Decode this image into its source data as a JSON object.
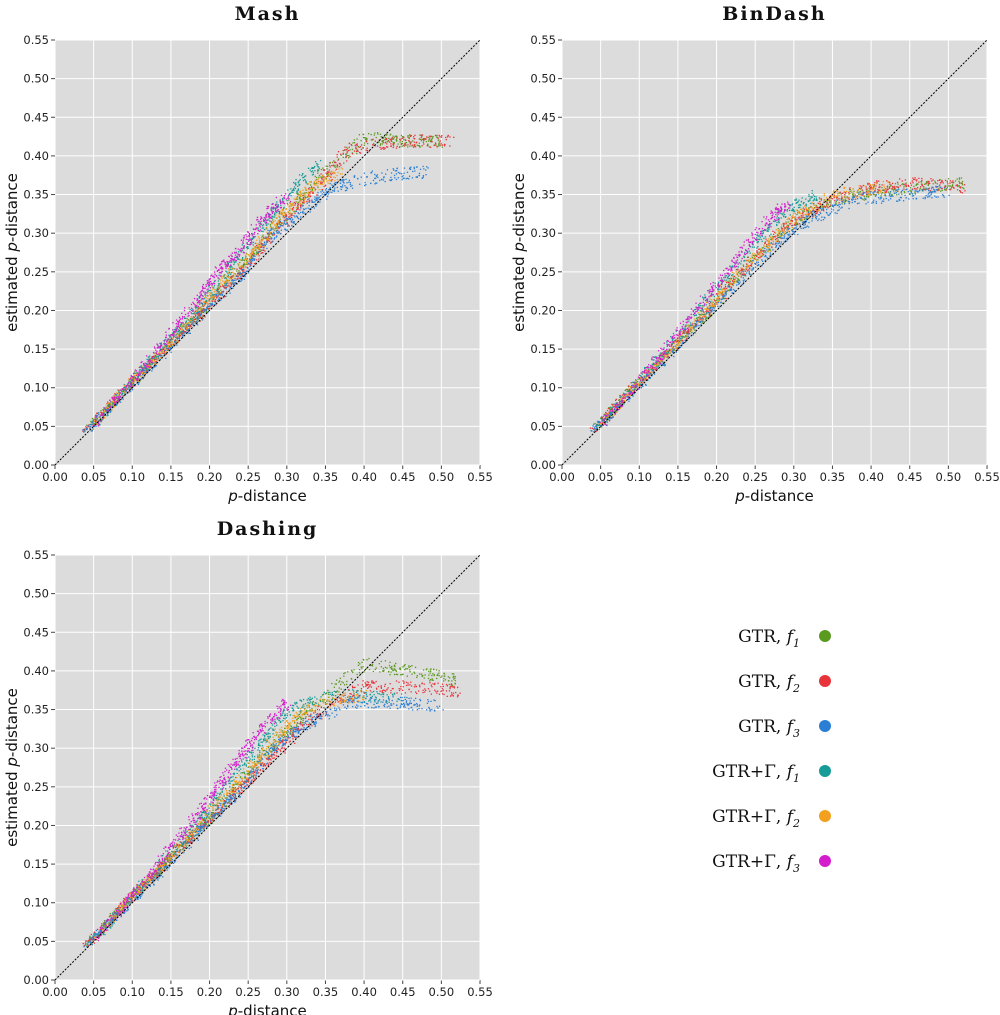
{
  "chart_data": [
    {
      "type": "scatter",
      "title": "Mash",
      "xlabel_var": "p",
      "xlabel_rest": "-distance",
      "ylabel_prefix": "estimated ",
      "ylabel_var": "p",
      "ylabel_rest": "-distance",
      "xlim": [
        0,
        0.55
      ],
      "ylim": [
        0,
        0.55
      ],
      "x_ticks": [
        "0.00",
        "0.05",
        "0.10",
        "0.15",
        "0.20",
        "0.25",
        "0.30",
        "0.35",
        "0.40",
        "0.45",
        "0.50",
        "0.55"
      ],
      "y_ticks": [
        "0.00",
        "0.05",
        "0.10",
        "0.15",
        "0.20",
        "0.25",
        "0.30",
        "0.35",
        "0.40",
        "0.45",
        "0.50",
        "0.55"
      ],
      "grid": true,
      "reference_line": "y = x",
      "series": [
        {
          "name": "GTR, f1",
          "points": [
            [
              0.04,
              0.046
            ],
            [
              0.08,
              0.087
            ],
            [
              0.13,
              0.14
            ],
            [
              0.18,
              0.19
            ],
            [
              0.22,
              0.235
            ],
            [
              0.26,
              0.28
            ],
            [
              0.3,
              0.33
            ],
            [
              0.34,
              0.37
            ],
            [
              0.4,
              0.425
            ],
            [
              0.45,
              0.42
            ],
            [
              0.5,
              0.42
            ]
          ]
        },
        {
          "name": "GTR, f2",
          "points": [
            [
              0.04,
              0.045
            ],
            [
              0.09,
              0.1
            ],
            [
              0.13,
              0.14
            ],
            [
              0.17,
              0.18
            ],
            [
              0.21,
              0.22
            ],
            [
              0.25,
              0.26
            ],
            [
              0.29,
              0.31
            ],
            [
              0.33,
              0.35
            ],
            [
              0.38,
              0.41
            ],
            [
              0.45,
              0.42
            ],
            [
              0.51,
              0.42
            ]
          ]
        },
        {
          "name": "GTR, f3",
          "points": [
            [
              0.04,
              0.045
            ],
            [
              0.08,
              0.085
            ],
            [
              0.12,
              0.125
            ],
            [
              0.16,
              0.165
            ],
            [
              0.2,
              0.21
            ],
            [
              0.24,
              0.245
            ],
            [
              0.28,
              0.3
            ],
            [
              0.32,
              0.33
            ],
            [
              0.36,
              0.36
            ],
            [
              0.42,
              0.375
            ],
            [
              0.48,
              0.38
            ]
          ]
        },
        {
          "name": "GTR+Γ, f1",
          "points": [
            [
              0.05,
              0.052
            ],
            [
              0.1,
              0.11
            ],
            [
              0.14,
              0.155
            ],
            [
              0.18,
              0.2
            ],
            [
              0.22,
              0.25
            ],
            [
              0.26,
              0.3
            ],
            [
              0.3,
              0.35
            ],
            [
              0.34,
              0.39
            ]
          ]
        },
        {
          "name": "GTR+Γ, f2",
          "points": [
            [
              0.05,
              0.052
            ],
            [
              0.1,
              0.11
            ],
            [
              0.15,
              0.16
            ],
            [
              0.2,
              0.22
            ],
            [
              0.25,
              0.27
            ],
            [
              0.29,
              0.32
            ],
            [
              0.33,
              0.36
            ],
            [
              0.37,
              0.38
            ]
          ]
        },
        {
          "name": "GTR+Γ, f3",
          "points": [
            [
              0.05,
              0.053
            ],
            [
              0.1,
              0.11
            ],
            [
              0.14,
              0.16
            ],
            [
              0.18,
              0.21
            ],
            [
              0.21,
              0.25
            ],
            [
              0.24,
              0.28
            ],
            [
              0.27,
              0.32
            ],
            [
              0.3,
              0.35
            ]
          ]
        }
      ]
    },
    {
      "type": "scatter",
      "title": "BinDash",
      "xlabel_var": "p",
      "xlabel_rest": "-distance",
      "ylabel_prefix": "estimated ",
      "ylabel_var": "p",
      "ylabel_rest": "-distance",
      "xlim": [
        0,
        0.55
      ],
      "ylim": [
        0,
        0.55
      ],
      "x_ticks": [
        "0.00",
        "0.05",
        "0.10",
        "0.15",
        "0.20",
        "0.25",
        "0.30",
        "0.35",
        "0.40",
        "0.45",
        "0.50",
        "0.55"
      ],
      "y_ticks": [
        "0.00",
        "0.05",
        "0.10",
        "0.15",
        "0.20",
        "0.25",
        "0.30",
        "0.35",
        "0.40",
        "0.45",
        "0.50",
        "0.55"
      ],
      "grid": true,
      "reference_line": "y = x",
      "series": [
        {
          "name": "GTR, f1",
          "points": [
            [
              0.04,
              0.046
            ],
            [
              0.09,
              0.1
            ],
            [
              0.14,
              0.15
            ],
            [
              0.19,
              0.2
            ],
            [
              0.24,
              0.26
            ],
            [
              0.29,
              0.31
            ],
            [
              0.34,
              0.34
            ],
            [
              0.4,
              0.355
            ],
            [
              0.46,
              0.36
            ],
            [
              0.52,
              0.365
            ]
          ]
        },
        {
          "name": "GTR, f2",
          "points": [
            [
              0.04,
              0.045
            ],
            [
              0.09,
              0.1
            ],
            [
              0.14,
              0.15
            ],
            [
              0.19,
              0.2
            ],
            [
              0.24,
              0.26
            ],
            [
              0.29,
              0.31
            ],
            [
              0.34,
              0.34
            ],
            [
              0.4,
              0.36
            ],
            [
              0.46,
              0.365
            ],
            [
              0.52,
              0.36
            ]
          ]
        },
        {
          "name": "GTR, f3",
          "points": [
            [
              0.04,
              0.045
            ],
            [
              0.08,
              0.085
            ],
            [
              0.13,
              0.135
            ],
            [
              0.18,
              0.19
            ],
            [
              0.23,
              0.24
            ],
            [
              0.28,
              0.29
            ],
            [
              0.32,
              0.32
            ],
            [
              0.38,
              0.345
            ],
            [
              0.44,
              0.35
            ],
            [
              0.5,
              0.355
            ]
          ]
        },
        {
          "name": "GTR+Γ, f1",
          "points": [
            [
              0.05,
              0.052
            ],
            [
              0.1,
              0.11
            ],
            [
              0.15,
              0.17
            ],
            [
              0.2,
              0.23
            ],
            [
              0.25,
              0.29
            ],
            [
              0.29,
              0.33
            ],
            [
              0.33,
              0.35
            ]
          ]
        },
        {
          "name": "GTR+Γ, f2",
          "points": [
            [
              0.05,
              0.052
            ],
            [
              0.1,
              0.11
            ],
            [
              0.15,
              0.16
            ],
            [
              0.2,
              0.22
            ],
            [
              0.25,
              0.27
            ],
            [
              0.3,
              0.32
            ],
            [
              0.35,
              0.35
            ],
            [
              0.42,
              0.36
            ]
          ]
        },
        {
          "name": "GTR+Γ, f3",
          "points": [
            [
              0.05,
              0.053
            ],
            [
              0.1,
              0.11
            ],
            [
              0.14,
              0.16
            ],
            [
              0.18,
              0.21
            ],
            [
              0.22,
              0.26
            ],
            [
              0.26,
              0.31
            ],
            [
              0.29,
              0.34
            ]
          ]
        }
      ]
    },
    {
      "type": "scatter",
      "title": "Dashing",
      "xlabel_var": "p",
      "xlabel_rest": "-distance",
      "ylabel_prefix": "estimated ",
      "ylabel_var": "p",
      "ylabel_rest": "-distance",
      "xlim": [
        0,
        0.55
      ],
      "ylim": [
        0,
        0.55
      ],
      "x_ticks": [
        "0.00",
        "0.05",
        "0.10",
        "0.15",
        "0.20",
        "0.25",
        "0.30",
        "0.35",
        "0.40",
        "0.45",
        "0.50",
        "0.55"
      ],
      "y_ticks": [
        "0.00",
        "0.05",
        "0.10",
        "0.15",
        "0.20",
        "0.25",
        "0.30",
        "0.35",
        "0.40",
        "0.45",
        "0.50",
        "0.55"
      ],
      "grid": true,
      "reference_line": "y = x",
      "series": [
        {
          "name": "GTR, f1",
          "points": [
            [
              0.04,
              0.046
            ],
            [
              0.09,
              0.1
            ],
            [
              0.13,
              0.14
            ],
            [
              0.17,
              0.18
            ],
            [
              0.21,
              0.22
            ],
            [
              0.25,
              0.27
            ],
            [
              0.29,
              0.31
            ],
            [
              0.33,
              0.35
            ],
            [
              0.4,
              0.41
            ],
            [
              0.46,
              0.4
            ],
            [
              0.52,
              0.39
            ]
          ]
        },
        {
          "name": "GTR, f2",
          "points": [
            [
              0.04,
              0.045
            ],
            [
              0.09,
              0.1
            ],
            [
              0.13,
              0.14
            ],
            [
              0.17,
              0.18
            ],
            [
              0.21,
              0.22
            ],
            [
              0.25,
              0.26
            ],
            [
              0.29,
              0.3
            ],
            [
              0.33,
              0.34
            ],
            [
              0.4,
              0.38
            ],
            [
              0.46,
              0.38
            ],
            [
              0.52,
              0.375
            ]
          ]
        },
        {
          "name": "GTR, f3",
          "points": [
            [
              0.04,
              0.045
            ],
            [
              0.08,
              0.085
            ],
            [
              0.12,
              0.125
            ],
            [
              0.16,
              0.165
            ],
            [
              0.2,
              0.21
            ],
            [
              0.24,
              0.245
            ],
            [
              0.28,
              0.3
            ],
            [
              0.32,
              0.33
            ],
            [
              0.38,
              0.36
            ],
            [
              0.44,
              0.36
            ],
            [
              0.5,
              0.355
            ]
          ]
        },
        {
          "name": "GTR+Γ, f1",
          "points": [
            [
              0.05,
              0.052
            ],
            [
              0.1,
              0.11
            ],
            [
              0.14,
              0.155
            ],
            [
              0.18,
              0.2
            ],
            [
              0.22,
              0.25
            ],
            [
              0.26,
              0.3
            ],
            [
              0.3,
              0.35
            ],
            [
              0.36,
              0.37
            ],
            [
              0.45,
              0.365
            ]
          ]
        },
        {
          "name": "GTR+Γ, f2",
          "points": [
            [
              0.05,
              0.052
            ],
            [
              0.1,
              0.11
            ],
            [
              0.15,
              0.16
            ],
            [
              0.2,
              0.22
            ],
            [
              0.25,
              0.27
            ],
            [
              0.29,
              0.32
            ],
            [
              0.33,
              0.355
            ],
            [
              0.4,
              0.37
            ]
          ]
        },
        {
          "name": "GTR+Γ, f3",
          "points": [
            [
              0.05,
              0.053
            ],
            [
              0.1,
              0.11
            ],
            [
              0.14,
              0.16
            ],
            [
              0.18,
              0.21
            ],
            [
              0.21,
              0.25
            ],
            [
              0.24,
              0.29
            ],
            [
              0.27,
              0.33
            ],
            [
              0.3,
              0.36
            ]
          ]
        }
      ]
    }
  ],
  "legend": {
    "placement": "bottom-right",
    "entries": [
      {
        "label": "GTR, ",
        "var": "f",
        "sub": "1",
        "color": "#5a9a1f"
      },
      {
        "label": "GTR, ",
        "var": "f",
        "sub": "2",
        "color": "#e8333b"
      },
      {
        "label": "GTR, ",
        "var": "f",
        "sub": "3",
        "color": "#2a7fd4"
      },
      {
        "label": "GTR+Γ, ",
        "var": "f",
        "sub": "1",
        "color": "#169c96"
      },
      {
        "label": "GTR+Γ, ",
        "var": "f",
        "sub": "2",
        "color": "#f2a01e"
      },
      {
        "label": "GTR+Γ, ",
        "var": "f",
        "sub": "3",
        "color": "#d41ccc"
      }
    ]
  },
  "colors": {
    "plot_background": "#dcdcdc",
    "grid": "#ffffff",
    "reference_line": "#000000"
  }
}
